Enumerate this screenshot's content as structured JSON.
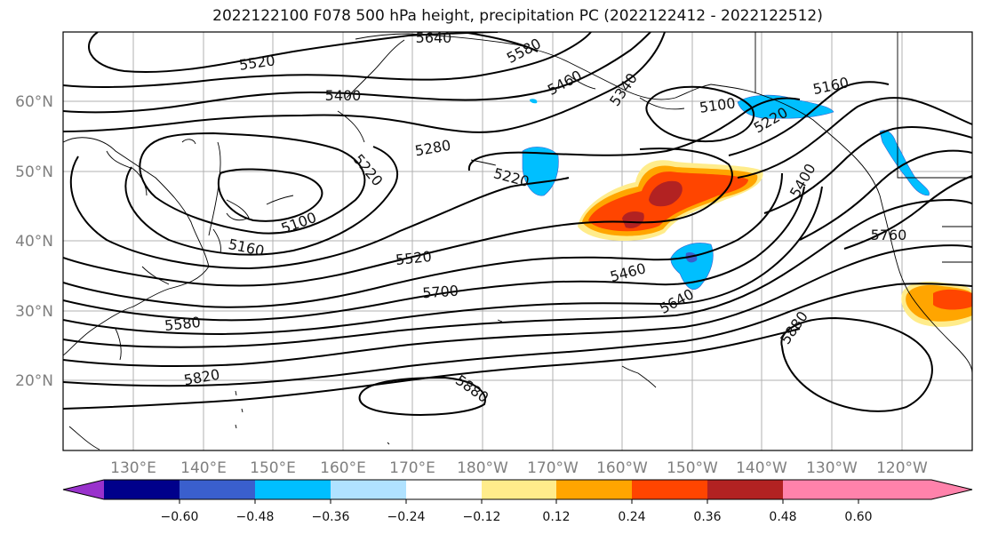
{
  "title": "2022122100 F078 500 hPa height, precipitation PC (2022122412 - 2022122512)",
  "map": {
    "lat_labels": [
      "60°N",
      "50°N",
      "40°N",
      "30°N",
      "20°N"
    ],
    "lon_labels": [
      "130°E",
      "140°E",
      "150°E",
      "160°E",
      "170°E",
      "180°W",
      "170°W",
      "160°W",
      "150°W",
      "140°W",
      "130°W",
      "120°W"
    ],
    "contour_labels": [
      "5640",
      "5580",
      "5520",
      "5460",
      "5340",
      "5400",
      "5280",
      "5220",
      "5220",
      "5100",
      "5160",
      "5100",
      "5220",
      "5160",
      "5400",
      "5760",
      "5520",
      "5460",
      "5700",
      "5640",
      "5580",
      "5820",
      "5880",
      "5880"
    ]
  },
  "colorbar": {
    "ticks": [
      "−0.60",
      "−0.48",
      "−0.36",
      "−0.24",
      "−0.12",
      "0.12",
      "0.24",
      "0.36",
      "0.48",
      "0.60"
    ],
    "colors": [
      "#9932cc",
      "#00008b",
      "#3a5fcd",
      "#00bfff",
      "#b0e2ff",
      "#ffffff",
      "#ffec8b",
      "#ffa500",
      "#ff4500",
      "#b22222",
      "#ff82ab",
      "#ff82ab"
    ]
  }
}
